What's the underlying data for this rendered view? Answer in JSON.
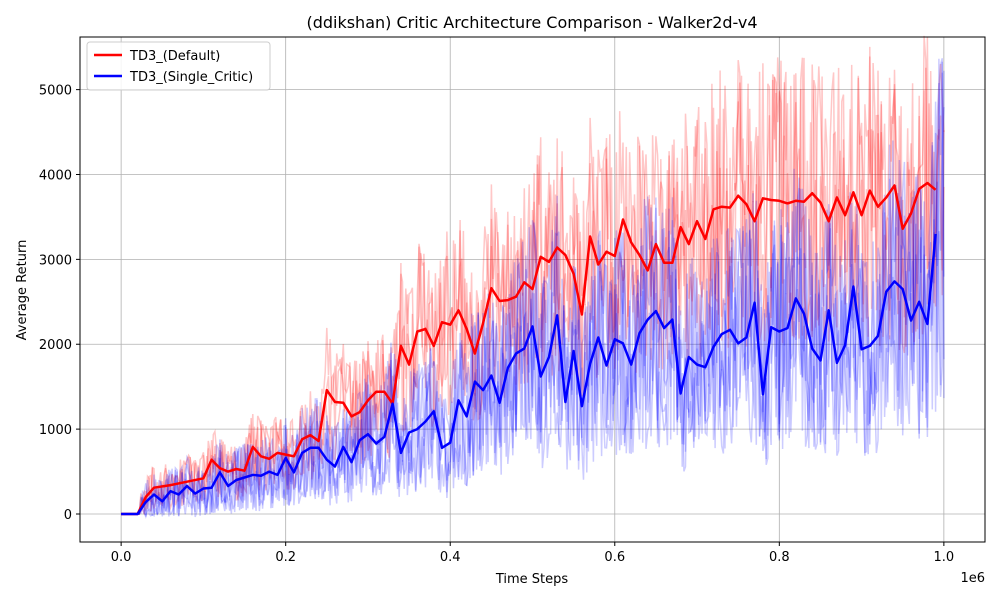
{
  "chart_data": {
    "type": "line",
    "title": "(ddikshan) Critic Architecture Comparison - Walker2d-v4",
    "xlabel": "Time Steps",
    "ylabel": "Average Return",
    "x_offset_label": "1e6",
    "xlim": [
      -0.05,
      1.05
    ],
    "ylim": [
      -330,
      5620
    ],
    "xticks": [
      0.0,
      0.2,
      0.4,
      0.6,
      0.8,
      1.0
    ],
    "xtick_labels": [
      "0.0",
      "0.2",
      "0.4",
      "0.6",
      "0.8",
      "1.0"
    ],
    "yticks": [
      0,
      1000,
      2000,
      3000,
      4000,
      5000
    ],
    "ytick_labels": [
      "0",
      "1000",
      "2000",
      "3000",
      "4000",
      "5000"
    ],
    "grid": true,
    "legend_position": "top-left",
    "series": [
      {
        "name": "TD3_(Default)",
        "color": "#ff0000",
        "mean": [
          [
            0.0,
            0
          ],
          [
            0.02,
            0
          ],
          [
            0.03,
            200
          ],
          [
            0.04,
            310
          ],
          [
            0.06,
            340
          ],
          [
            0.08,
            380
          ],
          [
            0.1,
            420
          ],
          [
            0.11,
            640
          ],
          [
            0.12,
            540
          ],
          [
            0.13,
            500
          ],
          [
            0.14,
            530
          ],
          [
            0.15,
            510
          ],
          [
            0.16,
            790
          ],
          [
            0.17,
            680
          ],
          [
            0.18,
            650
          ],
          [
            0.19,
            720
          ],
          [
            0.2,
            700
          ],
          [
            0.21,
            680
          ],
          [
            0.22,
            880
          ],
          [
            0.23,
            930
          ],
          [
            0.24,
            860
          ],
          [
            0.25,
            1460
          ],
          [
            0.26,
            1320
          ],
          [
            0.27,
            1310
          ],
          [
            0.28,
            1150
          ],
          [
            0.29,
            1200
          ],
          [
            0.3,
            1340
          ],
          [
            0.31,
            1440
          ],
          [
            0.32,
            1440
          ],
          [
            0.33,
            1300
          ],
          [
            0.34,
            1980
          ],
          [
            0.35,
            1760
          ],
          [
            0.36,
            2150
          ],
          [
            0.37,
            2180
          ],
          [
            0.38,
            1980
          ],
          [
            0.39,
            2260
          ],
          [
            0.4,
            2230
          ],
          [
            0.41,
            2400
          ],
          [
            0.42,
            2180
          ],
          [
            0.43,
            1890
          ],
          [
            0.44,
            2250
          ],
          [
            0.45,
            2660
          ],
          [
            0.46,
            2510
          ],
          [
            0.47,
            2520
          ],
          [
            0.48,
            2560
          ],
          [
            0.49,
            2730
          ],
          [
            0.5,
            2650
          ],
          [
            0.51,
            3030
          ],
          [
            0.52,
            2970
          ],
          [
            0.53,
            3140
          ],
          [
            0.54,
            3050
          ],
          [
            0.55,
            2830
          ],
          [
            0.56,
            2350
          ],
          [
            0.57,
            3270
          ],
          [
            0.58,
            2940
          ],
          [
            0.59,
            3090
          ],
          [
            0.6,
            3040
          ],
          [
            0.61,
            3470
          ],
          [
            0.62,
            3200
          ],
          [
            0.63,
            3050
          ],
          [
            0.64,
            2870
          ],
          [
            0.65,
            3180
          ],
          [
            0.66,
            2960
          ],
          [
            0.67,
            2960
          ],
          [
            0.68,
            3380
          ],
          [
            0.69,
            3180
          ],
          [
            0.7,
            3450
          ],
          [
            0.71,
            3240
          ],
          [
            0.72,
            3590
          ],
          [
            0.73,
            3620
          ],
          [
            0.74,
            3610
          ],
          [
            0.75,
            3750
          ],
          [
            0.76,
            3650
          ],
          [
            0.77,
            3450
          ],
          [
            0.78,
            3720
          ],
          [
            0.79,
            3700
          ],
          [
            0.8,
            3690
          ],
          [
            0.81,
            3660
          ],
          [
            0.82,
            3690
          ],
          [
            0.83,
            3680
          ],
          [
            0.84,
            3780
          ],
          [
            0.85,
            3670
          ],
          [
            0.86,
            3450
          ],
          [
            0.87,
            3730
          ],
          [
            0.88,
            3520
          ],
          [
            0.89,
            3790
          ],
          [
            0.9,
            3520
          ],
          [
            0.91,
            3810
          ],
          [
            0.92,
            3620
          ],
          [
            0.93,
            3730
          ],
          [
            0.94,
            3870
          ],
          [
            0.95,
            3360
          ],
          [
            0.96,
            3540
          ],
          [
            0.97,
            3830
          ],
          [
            0.98,
            3900
          ],
          [
            0.99,
            3820
          ]
        ]
      },
      {
        "name": "TD3_(Single_Critic)",
        "color": "#0000ff",
        "mean": [
          [
            0.0,
            0
          ],
          [
            0.02,
            0
          ],
          [
            0.03,
            140
          ],
          [
            0.04,
            230
          ],
          [
            0.05,
            150
          ],
          [
            0.06,
            270
          ],
          [
            0.07,
            230
          ],
          [
            0.08,
            330
          ],
          [
            0.09,
            240
          ],
          [
            0.1,
            300
          ],
          [
            0.11,
            310
          ],
          [
            0.12,
            490
          ],
          [
            0.13,
            330
          ],
          [
            0.14,
            400
          ],
          [
            0.15,
            430
          ],
          [
            0.16,
            460
          ],
          [
            0.17,
            450
          ],
          [
            0.18,
            500
          ],
          [
            0.19,
            460
          ],
          [
            0.2,
            660
          ],
          [
            0.21,
            490
          ],
          [
            0.22,
            720
          ],
          [
            0.23,
            780
          ],
          [
            0.24,
            780
          ],
          [
            0.25,
            640
          ],
          [
            0.26,
            560
          ],
          [
            0.27,
            790
          ],
          [
            0.28,
            610
          ],
          [
            0.29,
            870
          ],
          [
            0.3,
            940
          ],
          [
            0.31,
            830
          ],
          [
            0.32,
            910
          ],
          [
            0.33,
            1300
          ],
          [
            0.34,
            720
          ],
          [
            0.35,
            960
          ],
          [
            0.36,
            1000
          ],
          [
            0.37,
            1090
          ],
          [
            0.38,
            1210
          ],
          [
            0.39,
            780
          ],
          [
            0.4,
            840
          ],
          [
            0.41,
            1340
          ],
          [
            0.42,
            1150
          ],
          [
            0.43,
            1560
          ],
          [
            0.44,
            1460
          ],
          [
            0.45,
            1630
          ],
          [
            0.46,
            1310
          ],
          [
            0.47,
            1720
          ],
          [
            0.48,
            1890
          ],
          [
            0.49,
            1950
          ],
          [
            0.5,
            2210
          ],
          [
            0.51,
            1620
          ],
          [
            0.52,
            1850
          ],
          [
            0.53,
            2340
          ],
          [
            0.54,
            1320
          ],
          [
            0.55,
            1920
          ],
          [
            0.56,
            1270
          ],
          [
            0.57,
            1770
          ],
          [
            0.58,
            2080
          ],
          [
            0.59,
            1750
          ],
          [
            0.6,
            2060
          ],
          [
            0.61,
            2010
          ],
          [
            0.62,
            1760
          ],
          [
            0.63,
            2130
          ],
          [
            0.64,
            2290
          ],
          [
            0.65,
            2390
          ],
          [
            0.66,
            2190
          ],
          [
            0.67,
            2290
          ],
          [
            0.68,
            1420
          ],
          [
            0.69,
            1850
          ],
          [
            0.7,
            1760
          ],
          [
            0.71,
            1730
          ],
          [
            0.72,
            1970
          ],
          [
            0.73,
            2120
          ],
          [
            0.74,
            2170
          ],
          [
            0.75,
            2010
          ],
          [
            0.76,
            2080
          ],
          [
            0.77,
            2490
          ],
          [
            0.78,
            1410
          ],
          [
            0.79,
            2200
          ],
          [
            0.8,
            2150
          ],
          [
            0.81,
            2190
          ],
          [
            0.82,
            2540
          ],
          [
            0.83,
            2360
          ],
          [
            0.84,
            1950
          ],
          [
            0.85,
            1810
          ],
          [
            0.86,
            2400
          ],
          [
            0.87,
            1780
          ],
          [
            0.88,
            1990
          ],
          [
            0.89,
            2680
          ],
          [
            0.9,
            1940
          ],
          [
            0.91,
            1980
          ],
          [
            0.92,
            2100
          ],
          [
            0.93,
            2620
          ],
          [
            0.94,
            2740
          ],
          [
            0.95,
            2650
          ],
          [
            0.96,
            2280
          ],
          [
            0.97,
            2500
          ],
          [
            0.98,
            2240
          ],
          [
            0.99,
            3300
          ]
        ]
      }
    ]
  }
}
